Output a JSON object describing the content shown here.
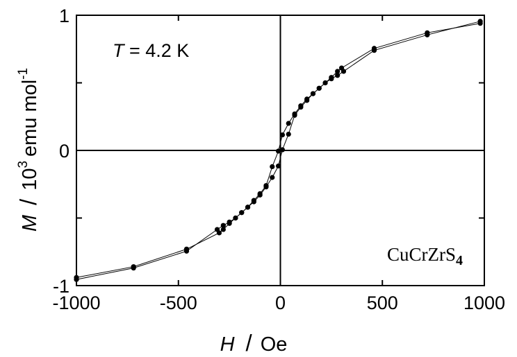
{
  "chart_data": {
    "type": "scatter",
    "title": "",
    "xlabel": {
      "symbol": "H",
      "separator": "/",
      "unit": "Oe"
    },
    "ylabel": {
      "symbol": "M",
      "separator": "/",
      "unit_base": "10",
      "unit_exp": "3",
      "unit_rest": "emu mol",
      "unit_rest_exp": "-1"
    },
    "xlim": [
      -1000,
      1000
    ],
    "ylim": [
      -1,
      1
    ],
    "x_ticks": [
      -1000,
      -500,
      0,
      500,
      1000
    ],
    "x_tick_labels": [
      "-1000",
      "-500",
      "0",
      "500",
      "1000"
    ],
    "y_ticks": [
      -1,
      0,
      1
    ],
    "y_tick_labels": [
      "-1",
      "0",
      "1"
    ],
    "grid": false,
    "zero_lines": true,
    "annotations": {
      "temperature": {
        "symbol": "T",
        "text": " = 4.2 K"
      },
      "compound": {
        "text": "CuCrZrS",
        "subscript": "4"
      }
    },
    "series": [
      {
        "points": [
          [
            -1000,
            -0.955
          ],
          [
            -720,
            -0.87
          ],
          [
            -460,
            -0.745
          ],
          [
            -310,
            -0.585
          ],
          [
            -280,
            -0.555
          ],
          [
            -250,
            -0.53
          ],
          [
            -220,
            -0.5
          ],
          [
            -190,
            -0.46
          ],
          [
            -160,
            -0.42
          ],
          [
            -130,
            -0.37
          ],
          [
            -100,
            -0.32
          ],
          [
            -70,
            -0.26
          ],
          [
            -40,
            -0.12
          ],
          [
            -10,
            -0.005
          ],
          [
            10,
            0.115
          ],
          [
            40,
            0.2
          ],
          [
            70,
            0.27
          ],
          [
            100,
            0.33
          ],
          [
            130,
            0.38
          ],
          [
            160,
            0.42
          ],
          [
            190,
            0.46
          ],
          [
            220,
            0.5
          ],
          [
            250,
            0.54
          ],
          [
            280,
            0.585
          ],
          [
            300,
            0.61
          ],
          [
            460,
            0.755
          ],
          [
            720,
            0.87
          ],
          [
            980,
            0.94
          ]
        ]
      },
      {
        "points": [
          [
            -1000,
            -0.94
          ],
          [
            -720,
            -0.86
          ],
          [
            -460,
            -0.73
          ],
          [
            -300,
            -0.61
          ],
          [
            -280,
            -0.585
          ],
          [
            -250,
            -0.54
          ],
          [
            -220,
            -0.5
          ],
          [
            -190,
            -0.46
          ],
          [
            -160,
            -0.42
          ],
          [
            -130,
            -0.38
          ],
          [
            -100,
            -0.33
          ],
          [
            -70,
            -0.27
          ],
          [
            -40,
            -0.2
          ],
          [
            -10,
            -0.115
          ],
          [
            10,
            0.005
          ],
          [
            40,
            0.12
          ],
          [
            70,
            0.26
          ],
          [
            100,
            0.32
          ],
          [
            130,
            0.37
          ],
          [
            160,
            0.42
          ],
          [
            190,
            0.46
          ],
          [
            220,
            0.5
          ],
          [
            250,
            0.53
          ],
          [
            280,
            0.555
          ],
          [
            310,
            0.585
          ],
          [
            460,
            0.74
          ],
          [
            720,
            0.855
          ],
          [
            980,
            0.955
          ]
        ]
      }
    ]
  }
}
